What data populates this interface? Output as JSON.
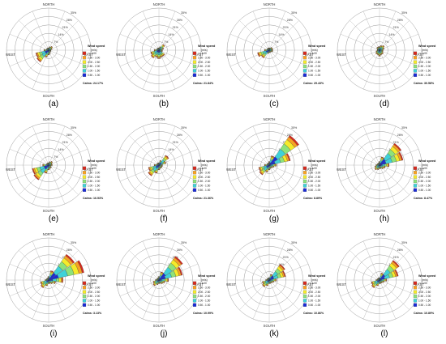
{
  "figure": {
    "panel_letters": [
      "(a)",
      "(b)",
      "(c)",
      "(d)",
      "(e)",
      "(f)",
      "(g)",
      "(h)",
      "(i)",
      "(j)",
      "(k)",
      "(l)"
    ]
  },
  "compass": {
    "north": "NORTH",
    "south": "SOUTH",
    "east": "EAST",
    "west": "WEST"
  },
  "ring_labels": [
    "7%",
    "14%",
    "21%",
    "28%",
    "35%"
  ],
  "legend": {
    "title": "Wind speed",
    "unit": "(m/s)",
    "bins": [
      {
        "label": ">= 3.00",
        "color": "#d62a1e"
      },
      {
        "label": "2.50 - 3.00",
        "color": "#f8a224"
      },
      {
        "label": "2.00 - 2.50",
        "color": "#f5ea2a"
      },
      {
        "label": "1.50 - 2.00",
        "color": "#8ee27a"
      },
      {
        "label": "1.00 - 1.50",
        "color": "#3fd2d8"
      },
      {
        "label": "0.50 - 1.00",
        "color": "#1a2bd6"
      }
    ]
  },
  "chart_data": {
    "type": "wind-rose",
    "directions": [
      "N",
      "NNE",
      "NE",
      "ENE",
      "E",
      "ESE",
      "SE",
      "SSE",
      "S",
      "SSW",
      "SW",
      "WSW",
      "W",
      "WNW",
      "NW",
      "NNW"
    ],
    "radial_max_percent": 35,
    "panels": [
      {
        "letter": "(a)",
        "calms": "Calms: 24.17%",
        "totals": [
          2,
          3,
          4,
          3,
          2,
          2,
          2,
          3,
          4,
          6,
          12,
          11,
          4,
          2,
          2,
          2
        ]
      },
      {
        "letter": "(b)",
        "calms": "Calms: 21.84%",
        "totals": [
          2,
          3,
          6,
          4,
          3,
          3,
          6,
          6,
          7,
          6,
          8,
          7,
          4,
          2,
          2,
          2
        ]
      },
      {
        "letter": "(c)",
        "calms": "Calms: 29.43%",
        "totals": [
          2,
          2,
          3,
          3,
          3,
          3,
          2,
          2,
          2,
          3,
          8,
          10,
          4,
          2,
          2,
          2
        ]
      },
      {
        "letter": "(d)",
        "calms": "Calms: 30.58%",
        "totals": [
          3,
          4,
          5,
          4,
          3,
          3,
          4,
          4,
          5,
          4,
          4,
          3,
          2,
          2,
          3,
          3
        ]
      },
      {
        "letter": "(e)",
        "calms": "Calms: 16.53%",
        "totals": [
          2,
          3,
          4,
          3,
          3,
          2,
          3,
          3,
          4,
          7,
          15,
          14,
          5,
          2,
          2,
          2
        ]
      },
      {
        "letter": "(f)",
        "calms": "Calms: 21.36%",
        "totals": [
          2,
          4,
          10,
          6,
          3,
          3,
          3,
          3,
          4,
          7,
          11,
          9,
          4,
          2,
          2,
          2
        ]
      },
      {
        "letter": "(g)",
        "calms": "Calms: 8.89%",
        "totals": [
          3,
          8,
          30,
          18,
          6,
          4,
          3,
          3,
          4,
          6,
          10,
          9,
          4,
          2,
          2,
          2
        ]
      },
      {
        "letter": "(h)",
        "calms": "Calms: 8.47%",
        "totals": [
          3,
          7,
          22,
          20,
          8,
          5,
          4,
          3,
          3,
          4,
          5,
          4,
          3,
          2,
          2,
          2
        ]
      },
      {
        "letter": "(i)",
        "calms": "Calms: 3.13%",
        "totals": [
          3,
          8,
          26,
          30,
          12,
          6,
          4,
          3,
          3,
          5,
          8,
          7,
          3,
          2,
          2,
          2
        ]
      },
      {
        "letter": "(j)",
        "calms": "Calms: 10.99%",
        "totals": [
          3,
          7,
          24,
          20,
          8,
          5,
          4,
          3,
          3,
          4,
          6,
          5,
          3,
          2,
          2,
          2
        ]
      },
      {
        "letter": "(k)",
        "calms": "Calms: 10.86%",
        "totals": [
          2,
          5,
          16,
          14,
          6,
          4,
          3,
          3,
          3,
          5,
          7,
          6,
          3,
          2,
          2,
          2
        ]
      },
      {
        "letter": "(l)",
        "calms": "Calms: 10.89%",
        "totals": [
          2,
          6,
          20,
          16,
          6,
          4,
          3,
          3,
          3,
          5,
          8,
          7,
          3,
          2,
          2,
          2
        ]
      }
    ]
  }
}
